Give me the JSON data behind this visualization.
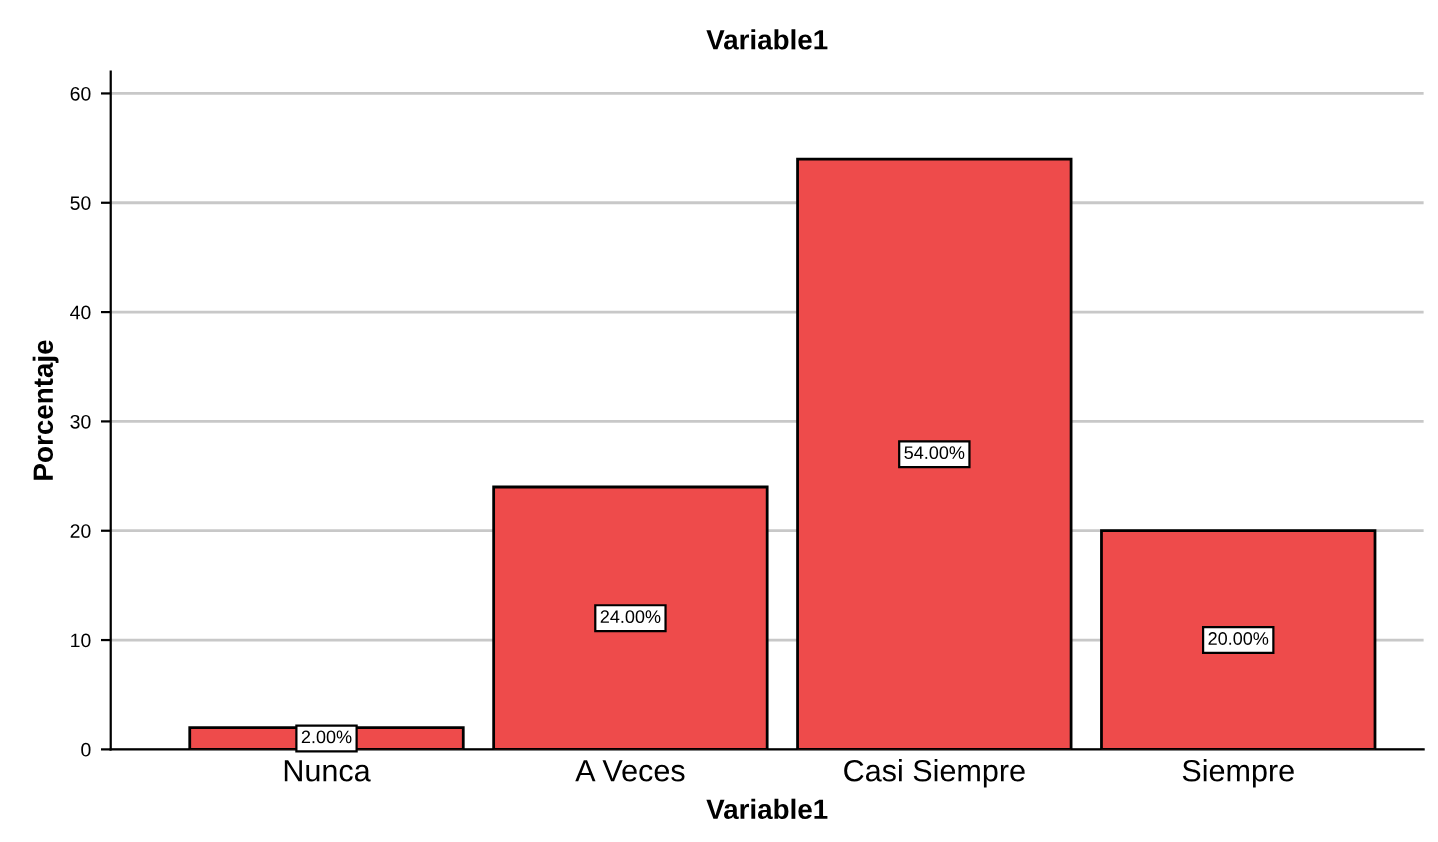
{
  "chart_data": {
    "type": "bar",
    "title": "Variable1",
    "xlabel": "Variable1",
    "ylabel": "Porcentaje",
    "categories": [
      "Nunca",
      "A Veces",
      "Casi Siempre",
      "Siempre"
    ],
    "values": [
      2,
      24,
      54,
      20
    ],
    "color": "#ee4b4b",
    "value_labels": [
      "2.00%",
      "24.00%",
      "54.00%",
      "20.00%"
    ],
    "ylim": [
      0,
      62
    ],
    "yticks": [
      0,
      10,
      20,
      30,
      40,
      50,
      60
    ],
    "grid": "y",
    "legend": false
  }
}
